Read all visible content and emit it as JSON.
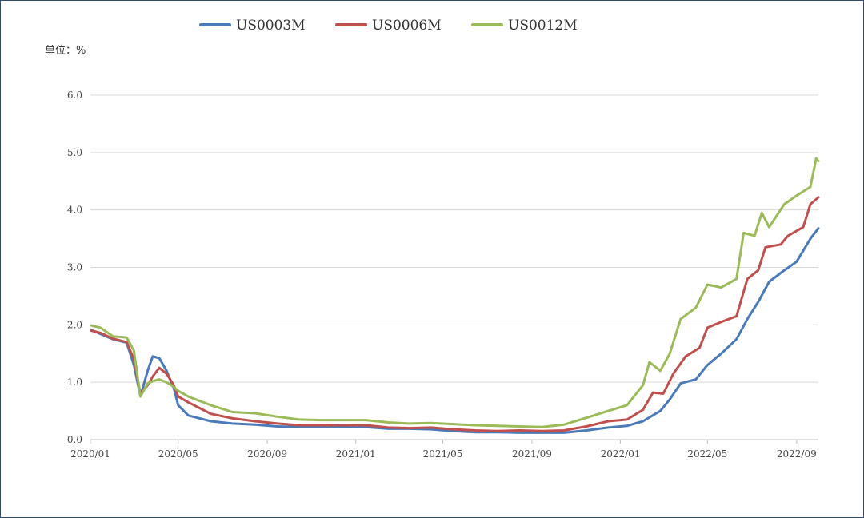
{
  "chart_data": {
    "type": "line",
    "unit_label": "单位：%",
    "ylim": [
      0,
      6
    ],
    "yticks": [
      "0.0",
      "1.0",
      "2.0",
      "3.0",
      "4.0",
      "5.0",
      "6.0"
    ],
    "xlim": [
      "2020-01",
      "2022-10"
    ],
    "xticks": [
      {
        "label": "2020/01",
        "date": "2020-01"
      },
      {
        "label": "2020/05",
        "date": "2020-05"
      },
      {
        "label": "2020/09",
        "date": "2020-09"
      },
      {
        "label": "2021/01",
        "date": "2021-01"
      },
      {
        "label": "2021/05",
        "date": "2021-05"
      },
      {
        "label": "2021/09",
        "date": "2021-09"
      },
      {
        "label": "2022/01",
        "date": "2022-01"
      },
      {
        "label": "2022/05",
        "date": "2022-05"
      },
      {
        "label": "2022/09",
        "date": "2022-09"
      }
    ],
    "grid": true,
    "legend_position": "top-center",
    "series": [
      {
        "name": "US0003M",
        "color": "#4a7ab8",
        "points": [
          [
            "2020-01-02",
            1.91
          ],
          [
            "2020-01-15",
            1.84
          ],
          [
            "2020-02-01",
            1.75
          ],
          [
            "2020-02-20",
            1.69
          ],
          [
            "2020-03-01",
            1.3
          ],
          [
            "2020-03-10",
            0.76
          ],
          [
            "2020-03-20",
            1.2
          ],
          [
            "2020-03-27",
            1.45
          ],
          [
            "2020-04-05",
            1.42
          ],
          [
            "2020-04-15",
            1.2
          ],
          [
            "2020-04-25",
            0.9
          ],
          [
            "2020-05-01",
            0.6
          ],
          [
            "2020-05-15",
            0.42
          ],
          [
            "2020-06-15",
            0.32
          ],
          [
            "2020-07-15",
            0.28
          ],
          [
            "2020-08-15",
            0.26
          ],
          [
            "2020-09-15",
            0.23
          ],
          [
            "2020-10-15",
            0.22
          ],
          [
            "2020-11-15",
            0.22
          ],
          [
            "2020-12-15",
            0.23
          ],
          [
            "2021-01-15",
            0.22
          ],
          [
            "2021-02-15",
            0.19
          ],
          [
            "2021-03-15",
            0.19
          ],
          [
            "2021-04-15",
            0.18
          ],
          [
            "2021-05-15",
            0.15
          ],
          [
            "2021-06-15",
            0.13
          ],
          [
            "2021-07-15",
            0.13
          ],
          [
            "2021-08-15",
            0.12
          ],
          [
            "2021-09-15",
            0.12
          ],
          [
            "2021-10-15",
            0.12
          ],
          [
            "2021-11-15",
            0.16
          ],
          [
            "2021-12-15",
            0.21
          ],
          [
            "2022-01-10",
            0.24
          ],
          [
            "2022-02-01",
            0.32
          ],
          [
            "2022-02-25",
            0.5
          ],
          [
            "2022-03-10",
            0.7
          ],
          [
            "2022-03-25",
            0.98
          ],
          [
            "2022-04-15",
            1.05
          ],
          [
            "2022-05-01",
            1.3
          ],
          [
            "2022-05-20",
            1.5
          ],
          [
            "2022-06-10",
            1.75
          ],
          [
            "2022-06-25",
            2.1
          ],
          [
            "2022-07-10",
            2.4
          ],
          [
            "2022-07-25",
            2.75
          ],
          [
            "2022-08-15",
            2.95
          ],
          [
            "2022-09-01",
            3.1
          ],
          [
            "2022-09-20",
            3.5
          ],
          [
            "2022-10-01",
            3.68
          ]
        ]
      },
      {
        "name": "US0006M",
        "color": "#c0504d",
        "points": [
          [
            "2020-01-02",
            1.9
          ],
          [
            "2020-01-15",
            1.86
          ],
          [
            "2020-02-01",
            1.76
          ],
          [
            "2020-02-20",
            1.7
          ],
          [
            "2020-03-01",
            1.4
          ],
          [
            "2020-03-10",
            0.8
          ],
          [
            "2020-03-20",
            0.95
          ],
          [
            "2020-03-27",
            1.1
          ],
          [
            "2020-04-05",
            1.25
          ],
          [
            "2020-04-15",
            1.15
          ],
          [
            "2020-04-25",
            0.95
          ],
          [
            "2020-05-01",
            0.75
          ],
          [
            "2020-05-15",
            0.65
          ],
          [
            "2020-06-15",
            0.45
          ],
          [
            "2020-07-15",
            0.37
          ],
          [
            "2020-08-15",
            0.32
          ],
          [
            "2020-09-15",
            0.28
          ],
          [
            "2020-10-15",
            0.25
          ],
          [
            "2020-11-15",
            0.25
          ],
          [
            "2020-12-15",
            0.25
          ],
          [
            "2021-01-15",
            0.25
          ],
          [
            "2021-02-15",
            0.21
          ],
          [
            "2021-03-15",
            0.2
          ],
          [
            "2021-04-15",
            0.21
          ],
          [
            "2021-05-15",
            0.18
          ],
          [
            "2021-06-15",
            0.16
          ],
          [
            "2021-07-15",
            0.15
          ],
          [
            "2021-08-15",
            0.16
          ],
          [
            "2021-09-15",
            0.15
          ],
          [
            "2021-10-15",
            0.16
          ],
          [
            "2021-11-15",
            0.23
          ],
          [
            "2021-12-15",
            0.32
          ],
          [
            "2022-01-10",
            0.35
          ],
          [
            "2022-02-01",
            0.52
          ],
          [
            "2022-02-15",
            0.82
          ],
          [
            "2022-03-01",
            0.8
          ],
          [
            "2022-03-15",
            1.15
          ],
          [
            "2022-04-01",
            1.45
          ],
          [
            "2022-04-20",
            1.6
          ],
          [
            "2022-05-01",
            1.95
          ],
          [
            "2022-05-20",
            2.05
          ],
          [
            "2022-06-10",
            2.15
          ],
          [
            "2022-06-25",
            2.8
          ],
          [
            "2022-07-10",
            2.95
          ],
          [
            "2022-07-20",
            3.35
          ],
          [
            "2022-08-10",
            3.4
          ],
          [
            "2022-08-20",
            3.55
          ],
          [
            "2022-09-10",
            3.7
          ],
          [
            "2022-09-20",
            4.1
          ],
          [
            "2022-10-01",
            4.22
          ]
        ]
      },
      {
        "name": "US0012M",
        "color": "#9bbb59",
        "points": [
          [
            "2020-01-02",
            1.99
          ],
          [
            "2020-01-15",
            1.95
          ],
          [
            "2020-02-01",
            1.8
          ],
          [
            "2020-02-20",
            1.78
          ],
          [
            "2020-03-01",
            1.55
          ],
          [
            "2020-03-10",
            0.75
          ],
          [
            "2020-03-20",
            0.98
          ],
          [
            "2020-03-27",
            1.02
          ],
          [
            "2020-04-05",
            1.05
          ],
          [
            "2020-04-15",
            1.0
          ],
          [
            "2020-04-25",
            0.92
          ],
          [
            "2020-05-01",
            0.85
          ],
          [
            "2020-05-15",
            0.75
          ],
          [
            "2020-06-15",
            0.6
          ],
          [
            "2020-07-15",
            0.48
          ],
          [
            "2020-08-15",
            0.46
          ],
          [
            "2020-09-15",
            0.4
          ],
          [
            "2020-10-15",
            0.35
          ],
          [
            "2020-11-15",
            0.34
          ],
          [
            "2020-12-15",
            0.34
          ],
          [
            "2021-01-15",
            0.34
          ],
          [
            "2021-02-15",
            0.3
          ],
          [
            "2021-03-15",
            0.28
          ],
          [
            "2021-04-15",
            0.29
          ],
          [
            "2021-05-15",
            0.27
          ],
          [
            "2021-06-15",
            0.25
          ],
          [
            "2021-07-15",
            0.24
          ],
          [
            "2021-08-15",
            0.23
          ],
          [
            "2021-09-15",
            0.22
          ],
          [
            "2021-10-15",
            0.26
          ],
          [
            "2021-11-15",
            0.38
          ],
          [
            "2021-12-15",
            0.5
          ],
          [
            "2022-01-10",
            0.6
          ],
          [
            "2022-02-01",
            0.95
          ],
          [
            "2022-02-10",
            1.35
          ],
          [
            "2022-02-25",
            1.2
          ],
          [
            "2022-03-10",
            1.5
          ],
          [
            "2022-03-25",
            2.1
          ],
          [
            "2022-04-15",
            2.3
          ],
          [
            "2022-05-01",
            2.7
          ],
          [
            "2022-05-20",
            2.65
          ],
          [
            "2022-06-10",
            2.8
          ],
          [
            "2022-06-20",
            3.6
          ],
          [
            "2022-07-05",
            3.55
          ],
          [
            "2022-07-15",
            3.95
          ],
          [
            "2022-07-25",
            3.7
          ],
          [
            "2022-08-15",
            4.1
          ],
          [
            "2022-09-01",
            4.25
          ],
          [
            "2022-09-20",
            4.4
          ],
          [
            "2022-09-28",
            4.9
          ],
          [
            "2022-10-01",
            4.85
          ]
        ]
      }
    ]
  }
}
